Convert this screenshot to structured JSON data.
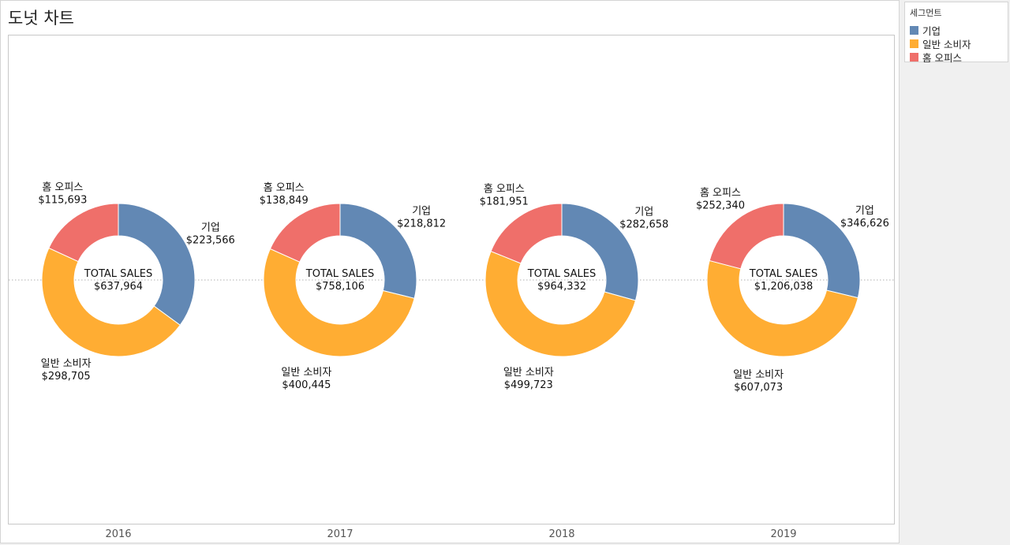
{
  "title": "도넛 차트",
  "legend": {
    "title": "세그먼트",
    "items": [
      {
        "label": "기업",
        "color": "#6288b4"
      },
      {
        "label": "일반 소비자",
        "color": "#ffad33"
      },
      {
        "label": "홈 오피스",
        "color": "#ef6f6a"
      }
    ]
  },
  "chart_data": {
    "type": "donut",
    "center_label": "TOTAL SALES",
    "x_categories": [
      "2016",
      "2017",
      "2018",
      "2019"
    ],
    "segments": [
      "기업",
      "일반 소비자",
      "홈 오피스"
    ],
    "series": [
      {
        "name": "기업",
        "color": "#6288b4",
        "values": [
          223566,
          218812,
          282658,
          346626
        ],
        "labels": [
          "$223,566",
          "$218,812",
          "$282,658",
          "$346,626"
        ]
      },
      {
        "name": "일반 소비자",
        "color": "#ffad33",
        "values": [
          298705,
          400445,
          499723,
          607073
        ],
        "labels": [
          "$298,705",
          "$400,445",
          "$499,723",
          "$607,073"
        ]
      },
      {
        "name": "홈 오피스",
        "color": "#ef6f6a",
        "values": [
          115693,
          138849,
          181951,
          252340
        ],
        "labels": [
          "$115,693",
          "$138,849",
          "$181,951",
          "$252,340"
        ]
      }
    ],
    "totals": [
      637964,
      758106,
      964332,
      1206038
    ],
    "total_labels": [
      "$637,964",
      "$758,106",
      "$964,332",
      "$1,206,038"
    ],
    "reference_line": "dotted horizontal center line",
    "legend_position": "top-right"
  }
}
